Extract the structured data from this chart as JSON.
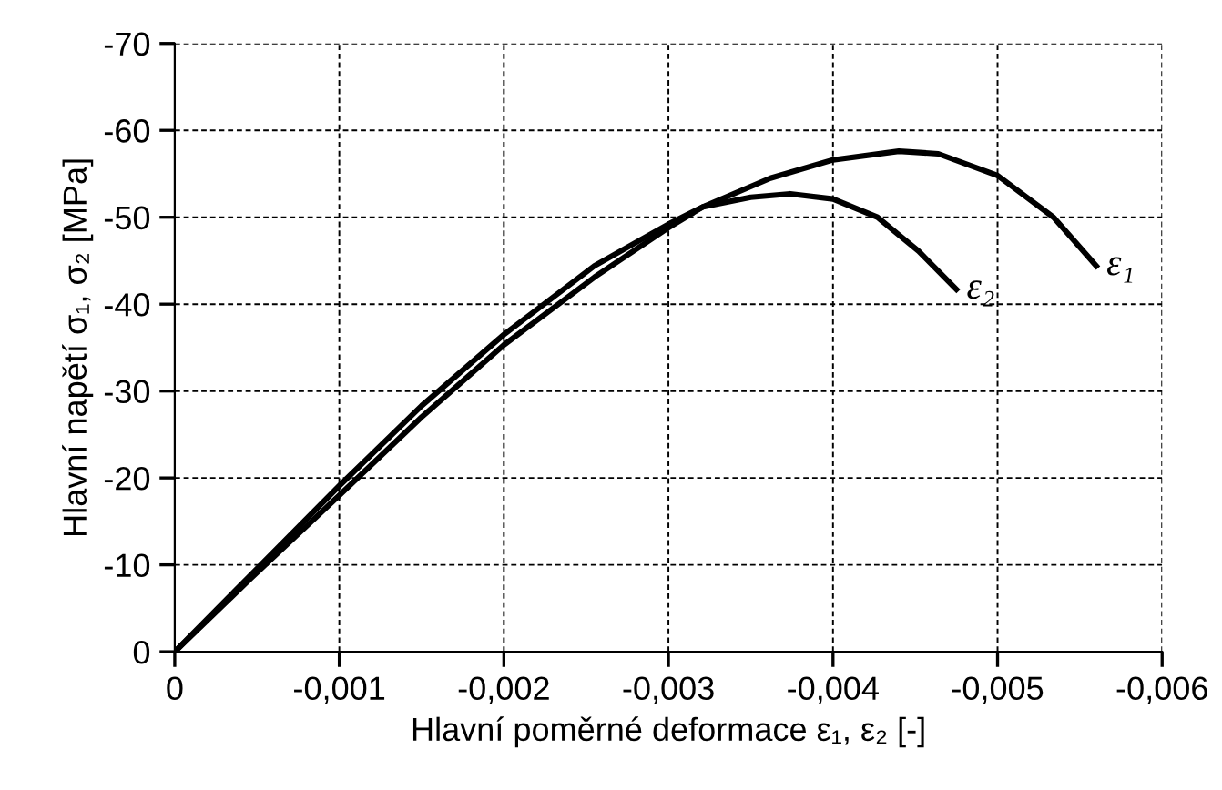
{
  "chart_data": {
    "type": "line",
    "xlabel": "Hlavní poměrné deformace ε₁, ε₂ [-]",
    "ylabel": "Hlavní napětí σ₁, σ₂ [MPa]",
    "xlim": [
      0,
      -0.006
    ],
    "ylim": [
      0,
      -70
    ],
    "xticks": [
      0,
      {
        "value": -0.001,
        "label": "-0,001"
      },
      {
        "value": -0.002,
        "label": "-0,002"
      },
      {
        "value": -0.003,
        "label": "-0,003"
      },
      {
        "value": -0.004,
        "label": "-0,004"
      },
      {
        "value": -0.005,
        "label": "-0,005"
      },
      {
        "value": -0.006,
        "label": "-0,006"
      }
    ],
    "yticks": [
      0,
      -10,
      -20,
      -30,
      -40,
      -50,
      -60,
      -70
    ],
    "grid": true,
    "legend": false,
    "line_style": "solid",
    "marker": "none",
    "series": [
      {
        "name": "ε₁",
        "color": "#000000",
        "x": [
          0,
          -0.00046,
          -0.001,
          -0.0015,
          -0.002,
          -0.00255,
          -0.003,
          -0.00321,
          -0.00362,
          -0.004,
          -0.0044,
          -0.00464,
          -0.005,
          -0.00534,
          -0.0056
        ],
        "values": [
          0,
          -8.4,
          -18.0,
          -27.0,
          -35.3,
          -43.1,
          -48.8,
          -51.2,
          -54.5,
          -56.6,
          -57.6,
          -57.3,
          -54.8,
          -50.0,
          -44.4
        ]
      },
      {
        "name": "ε₂",
        "color": "#000000",
        "x": [
          0,
          -0.00046,
          -0.001,
          -0.0015,
          -0.002,
          -0.00255,
          -0.003,
          -0.00321,
          -0.0035,
          -0.00374,
          -0.004,
          -0.00427,
          -0.00452,
          -0.00475
        ],
        "values": [
          0,
          -8.8,
          -19.1,
          -28.3,
          -36.5,
          -44.4,
          -49.2,
          -51.2,
          -52.3,
          -52.7,
          -52.1,
          -50.0,
          -46.1,
          -41.7
        ]
      }
    ]
  }
}
